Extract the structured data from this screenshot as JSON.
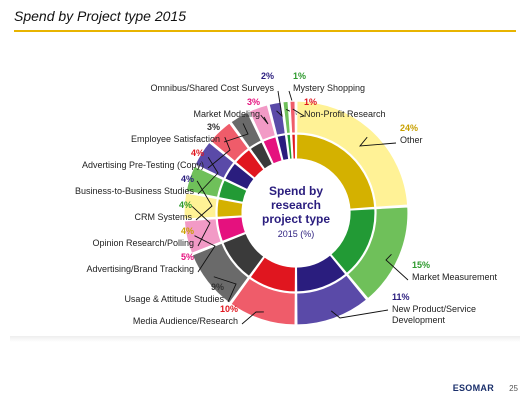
{
  "slide": {
    "title": "Spend by Project type 2015",
    "brand": "ESOMAR",
    "page_number": "25"
  },
  "chart_data": {
    "type": "pie",
    "variant": "donut",
    "center_text": [
      "Spend by",
      "research",
      "project type",
      "2015 (%)"
    ],
    "slices": [
      {
        "label": "Other",
        "value": 24,
        "pct_text": "24%",
        "outer_color": "#fff296",
        "inner_color": "#d4b100",
        "label_color": "#c8a000"
      },
      {
        "label": "Market Measurement",
        "value": 15,
        "pct_text": "15%",
        "outer_color": "#6fc05a",
        "inner_color": "#229a35",
        "label_color": "#2e9a2e"
      },
      {
        "label": "New Product/Service Development",
        "value": 11,
        "pct_text": "11%",
        "outer_color": "#5a4aa8",
        "inner_color": "#2a1d7e",
        "label_color": "#2a1d7e"
      },
      {
        "label": "Media Audience/Research",
        "value": 10,
        "pct_text": "10%",
        "outer_color": "#ef5c6a",
        "inner_color": "#e0161f",
        "label_color": "#e0161f"
      },
      {
        "label": "Usage & Attitude Studies",
        "value": 9,
        "pct_text": "9%",
        "outer_color": "#6a6a6a",
        "inner_color": "#3a3a3a",
        "label_color": "#333333"
      },
      {
        "label": "Advertising/Brand Tracking",
        "value": 5,
        "pct_text": "5%",
        "outer_color": "#f29ac6",
        "inner_color": "#e5117e",
        "label_color": "#e5117e"
      },
      {
        "label": "Opinion Research/Polling",
        "value": 4,
        "pct_text": "4%",
        "outer_color": "#fff296",
        "inner_color": "#d4b100",
        "label_color": "#c8a000"
      },
      {
        "label": "CRM Systems",
        "value": 4,
        "pct_text": "4%",
        "outer_color": "#6fc05a",
        "inner_color": "#229a35",
        "label_color": "#2e9a2e"
      },
      {
        "label": "Business-to-Business Studies",
        "value": 4,
        "pct_text": "4%",
        "outer_color": "#5a4aa8",
        "inner_color": "#2a1d7e",
        "label_color": "#2a1d7e"
      },
      {
        "label": "Advertising Pre-Testing (Copy)",
        "value": 4,
        "pct_text": "4%",
        "outer_color": "#ef5c6a",
        "inner_color": "#e0161f",
        "label_color": "#e0161f"
      },
      {
        "label": "Employee Satisfaction",
        "value": 3,
        "pct_text": "3%",
        "outer_color": "#6a6a6a",
        "inner_color": "#3a3a3a",
        "label_color": "#333333"
      },
      {
        "label": "Market Modeling",
        "value": 3,
        "pct_text": "3%",
        "outer_color": "#f29ac6",
        "inner_color": "#e5117e",
        "label_color": "#e5117e"
      },
      {
        "label": "Omnibus/Shared Cost Surveys",
        "value": 2,
        "pct_text": "2%",
        "outer_color": "#5a4aa8",
        "inner_color": "#2a1d7e",
        "label_color": "#2a1d7e"
      },
      {
        "label": "Mystery Shopping",
        "value": 1,
        "pct_text": "1%",
        "outer_color": "#6fc05a",
        "inner_color": "#229a35",
        "label_color": "#2e9a2e"
      },
      {
        "label": "Non-Profit Research",
        "value": 1,
        "pct_text": "1%",
        "outer_color": "#ef5c6a",
        "inner_color": "#e0161f",
        "label_color": "#e0161f"
      }
    ],
    "center_color": "#2a1d7e"
  }
}
